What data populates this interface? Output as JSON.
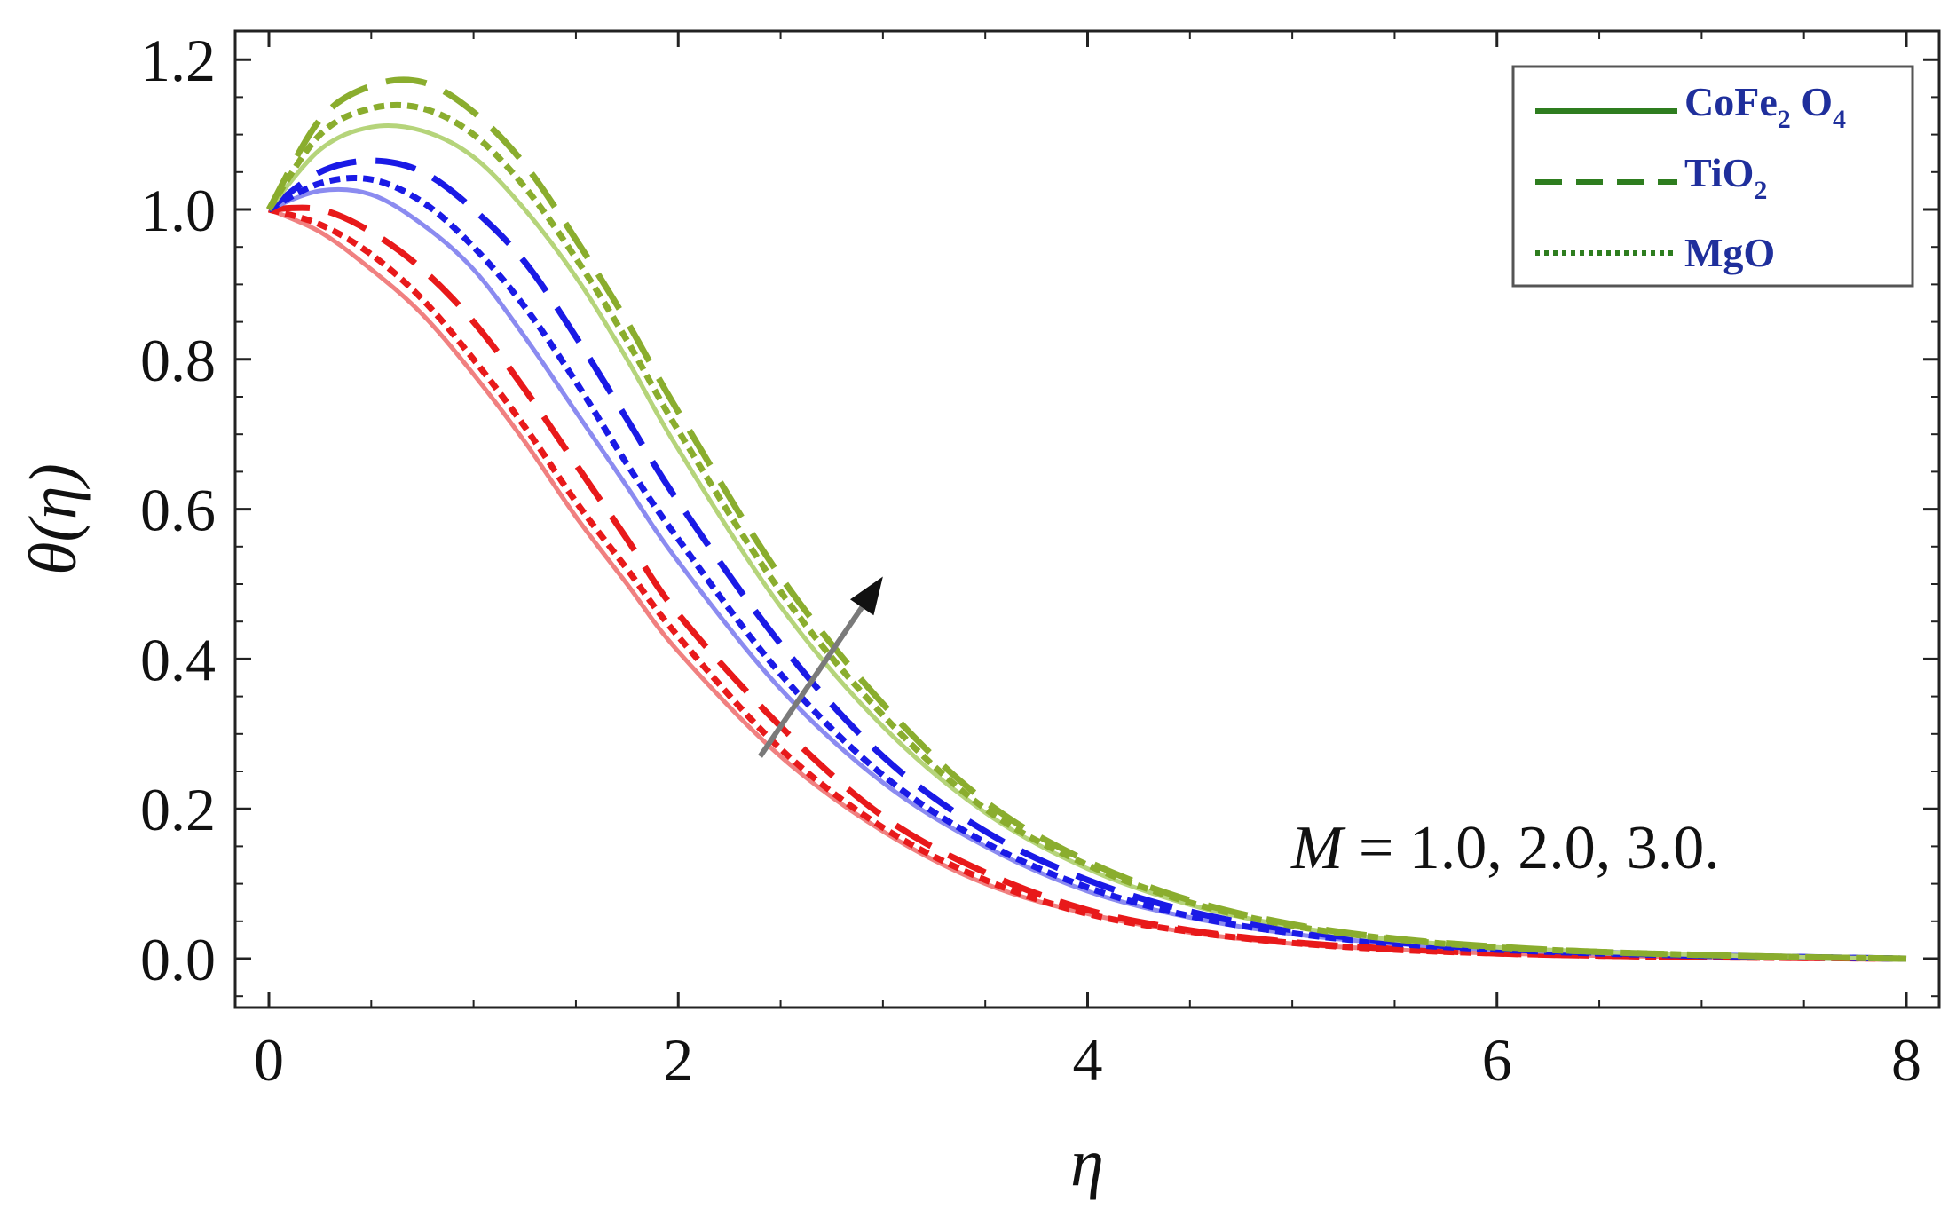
{
  "chart_data": {
    "type": "line",
    "title": "",
    "xlabel": "η",
    "ylabel": "θ(η)",
    "xlim": [
      0,
      8
    ],
    "ylim": [
      -0.07,
      1.25
    ],
    "x_ticks": [
      0,
      2,
      4,
      6,
      8
    ],
    "y_ticks": [
      0.0,
      0.2,
      0.4,
      0.6,
      0.8,
      1.0,
      1.2
    ],
    "y_tick_labels": [
      "0.0",
      "0.2",
      "0.4",
      "0.6",
      "0.8",
      "1.0",
      "1.2"
    ],
    "x_tick_labels": [
      "0",
      "2",
      "4",
      "6",
      "8"
    ],
    "legend": {
      "position": "top-right",
      "entries": [
        {
          "label": "CoFe",
          "sub1": "2",
          "label2": " O",
          "sub2": "4",
          "style": "solid"
        },
        {
          "label": "TiO",
          "sub1": "2",
          "label2": "",
          "sub2": "",
          "style": "dashed"
        },
        {
          "label": "MgO",
          "sub1": "",
          "label2": "",
          "sub2": "",
          "style": "dotted"
        }
      ],
      "line_color": "#2e7d1f"
    },
    "annotation": {
      "var": "M",
      "text": " = 1.0, 2.0, 3.0."
    },
    "arrow": {
      "from": [
        2.4,
        0.27
      ],
      "to": [
        3.0,
        0.51
      ],
      "meaning": "increasing M"
    },
    "series": [
      {
        "name": "M=1.0 CoFe2O4",
        "M": 1.0,
        "fluid": "CoFe2O4",
        "style": "solid",
        "color": "#f08080",
        "x": [
          0,
          0.25,
          0.5,
          0.75,
          1.0,
          1.25,
          1.5,
          1.75,
          2.0,
          2.5,
          3.0,
          3.5,
          4.0,
          4.5,
          5.0,
          5.5,
          6.0,
          6.5,
          7.0,
          7.5,
          8.0
        ],
        "y": [
          1.0,
          0.97,
          0.92,
          0.86,
          0.78,
          0.69,
          0.59,
          0.5,
          0.41,
          0.27,
          0.17,
          0.1,
          0.06,
          0.035,
          0.02,
          0.012,
          0.007,
          0.004,
          0.002,
          0.001,
          0.0
        ]
      },
      {
        "name": "M=1.0 TiO2",
        "M": 1.0,
        "fluid": "TiO2",
        "style": "dashed",
        "color": "#e8191a",
        "x": [
          0,
          0.25,
          0.5,
          0.75,
          1.0,
          1.25,
          1.5,
          1.75,
          2.0,
          2.5,
          3.0,
          3.5,
          4.0,
          4.5,
          5.0,
          5.5,
          6.0,
          6.5,
          7.0,
          7.5,
          8.0
        ],
        "y": [
          1.0,
          1.0,
          0.97,
          0.92,
          0.85,
          0.76,
          0.66,
          0.56,
          0.46,
          0.31,
          0.19,
          0.115,
          0.065,
          0.038,
          0.022,
          0.013,
          0.007,
          0.004,
          0.002,
          0.001,
          0.0
        ]
      },
      {
        "name": "M=1.0 MgO",
        "M": 1.0,
        "fluid": "MgO",
        "style": "dotted",
        "color": "#e8191a",
        "x": [
          0,
          0.25,
          0.5,
          0.75,
          1.0,
          1.25,
          1.5,
          1.75,
          2.0,
          2.5,
          3.0,
          3.5,
          4.0,
          4.5,
          5.0,
          5.5,
          6.0,
          6.5,
          7.0,
          7.5,
          8.0
        ],
        "y": [
          1.0,
          0.98,
          0.94,
          0.88,
          0.8,
          0.71,
          0.61,
          0.52,
          0.43,
          0.28,
          0.175,
          0.105,
          0.06,
          0.036,
          0.021,
          0.012,
          0.007,
          0.004,
          0.002,
          0.001,
          0.0
        ]
      },
      {
        "name": "M=2.0 CoFe2O4",
        "M": 2.0,
        "fluid": "CoFe2O4",
        "style": "solid",
        "color": "#8b8bf0",
        "x": [
          0,
          0.25,
          0.5,
          0.75,
          1.0,
          1.25,
          1.5,
          1.75,
          2.0,
          2.5,
          3.0,
          3.5,
          4.0,
          4.5,
          5.0,
          5.5,
          6.0,
          6.5,
          7.0,
          7.5,
          8.0
        ],
        "y": [
          1.0,
          1.025,
          1.02,
          0.98,
          0.92,
          0.83,
          0.73,
          0.63,
          0.53,
          0.36,
          0.235,
          0.15,
          0.09,
          0.055,
          0.033,
          0.02,
          0.012,
          0.007,
          0.004,
          0.002,
          0.0
        ]
      },
      {
        "name": "M=2.0 TiO2",
        "M": 2.0,
        "fluid": "TiO2",
        "style": "dashed",
        "color": "#1a1ae6",
        "x": [
          0,
          0.25,
          0.5,
          0.75,
          1.0,
          1.25,
          1.5,
          1.75,
          2.0,
          2.5,
          3.0,
          3.5,
          4.0,
          4.5,
          5.0,
          5.5,
          6.0,
          6.5,
          7.0,
          7.5,
          8.0
        ],
        "y": [
          1.0,
          1.05,
          1.065,
          1.05,
          1.0,
          0.93,
          0.83,
          0.72,
          0.61,
          0.42,
          0.27,
          0.17,
          0.105,
          0.063,
          0.038,
          0.022,
          0.013,
          0.008,
          0.004,
          0.002,
          0.0
        ]
      },
      {
        "name": "M=2.0 MgO",
        "M": 2.0,
        "fluid": "MgO",
        "style": "dotted",
        "color": "#1a1ae6",
        "x": [
          0,
          0.25,
          0.5,
          0.75,
          1.0,
          1.25,
          1.5,
          1.75,
          2.0,
          2.5,
          3.0,
          3.5,
          4.0,
          4.5,
          5.0,
          5.5,
          6.0,
          6.5,
          7.0,
          7.5,
          8.0
        ],
        "y": [
          1.0,
          1.035,
          1.04,
          1.01,
          0.95,
          0.87,
          0.77,
          0.66,
          0.56,
          0.38,
          0.245,
          0.155,
          0.095,
          0.057,
          0.034,
          0.02,
          0.012,
          0.007,
          0.004,
          0.002,
          0.0
        ]
      },
      {
        "name": "M=3.0 CoFe2O4",
        "M": 3.0,
        "fluid": "CoFe2O4",
        "style": "solid",
        "color": "#b5d47a",
        "x": [
          0,
          0.25,
          0.5,
          0.75,
          1.0,
          1.25,
          1.5,
          1.75,
          2.0,
          2.5,
          3.0,
          3.5,
          4.0,
          4.5,
          5.0,
          5.5,
          6.0,
          6.5,
          7.0,
          7.5,
          8.0
        ],
        "y": [
          1.0,
          1.08,
          1.11,
          1.105,
          1.07,
          1.0,
          0.91,
          0.8,
          0.68,
          0.47,
          0.31,
          0.195,
          0.12,
          0.072,
          0.043,
          0.025,
          0.015,
          0.009,
          0.005,
          0.002,
          0.0
        ]
      },
      {
        "name": "M=3.0 TiO2",
        "M": 3.0,
        "fluid": "TiO2",
        "style": "dashed",
        "color": "#8aad2e",
        "x": [
          0,
          0.25,
          0.5,
          0.75,
          1.0,
          1.25,
          1.5,
          1.75,
          2.0,
          2.5,
          3.0,
          3.5,
          4.0,
          4.5,
          5.0,
          5.5,
          6.0,
          6.5,
          7.0,
          7.5,
          8.0
        ],
        "y": [
          1.0,
          1.12,
          1.165,
          1.17,
          1.13,
          1.06,
          0.96,
          0.85,
          0.73,
          0.51,
          0.34,
          0.21,
          0.13,
          0.078,
          0.046,
          0.027,
          0.016,
          0.009,
          0.005,
          0.002,
          0.0
        ]
      },
      {
        "name": "M=3.0 MgO",
        "M": 3.0,
        "fluid": "MgO",
        "style": "dotted",
        "color": "#8aad2e",
        "x": [
          0,
          0.25,
          0.5,
          0.75,
          1.0,
          1.25,
          1.5,
          1.75,
          2.0,
          2.5,
          3.0,
          3.5,
          4.0,
          4.5,
          5.0,
          5.5,
          6.0,
          6.5,
          7.0,
          7.5,
          8.0
        ],
        "y": [
          1.0,
          1.1,
          1.135,
          1.135,
          1.1,
          1.03,
          0.935,
          0.825,
          0.705,
          0.49,
          0.325,
          0.2,
          0.125,
          0.075,
          0.044,
          0.026,
          0.015,
          0.009,
          0.005,
          0.002,
          0.0
        ]
      }
    ]
  }
}
